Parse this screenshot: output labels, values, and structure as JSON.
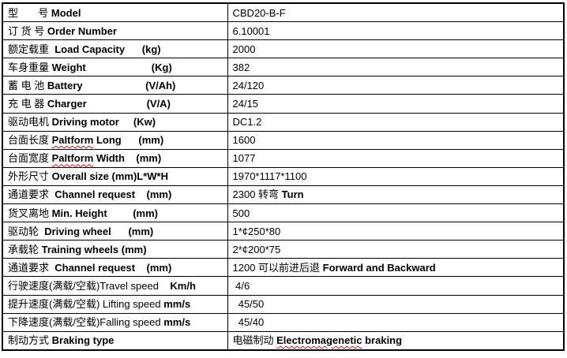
{
  "document": {
    "background": "#ffffff",
    "border_color": "#000000",
    "misspell_underline_color": "#ff0000",
    "text_color": "#000000"
  },
  "table": {
    "columns": [
      "label",
      "value"
    ],
    "rows": [
      {
        "label": [
          {
            "t": "型       号 "
          },
          {
            "t": "Model",
            "b": true
          }
        ],
        "value": [
          {
            "t": "CBD20-B-F"
          }
        ]
      },
      {
        "label": [
          {
            "t": "订 货 号 "
          },
          {
            "t": "Order Number",
            "b": true
          }
        ],
        "value": [
          {
            "t": "6.10001"
          }
        ]
      },
      {
        "label": [
          {
            "t": "额定载重  "
          },
          {
            "t": "Load Capacity",
            "b": true
          },
          {
            "t": "      "
          },
          {
            "t": "(kg)",
            "b": true
          }
        ],
        "value": [
          {
            "t": "2000"
          }
        ]
      },
      {
        "label": [
          {
            "t": "车身重量 "
          },
          {
            "t": "Weight",
            "b": true
          },
          {
            "t": "                       "
          },
          {
            "t": "(Kg)",
            "b": true
          }
        ],
        "value": [
          {
            "t": "382"
          }
        ]
      },
      {
        "label": [
          {
            "t": "蓄 电 池 "
          },
          {
            "t": "Battery",
            "b": true
          },
          {
            "t": "                      "
          },
          {
            "t": "(V/Ah)",
            "b": true
          }
        ],
        "value": [
          {
            "t": "24/120"
          }
        ]
      },
      {
        "label": [
          {
            "t": "充 电 器 "
          },
          {
            "t": "Charger",
            "b": true
          },
          {
            "t": "                     "
          },
          {
            "t": "(V/A)",
            "b": true
          }
        ],
        "value": [
          {
            "t": "24/15"
          }
        ]
      },
      {
        "label": [
          {
            "t": "驱动电机 "
          },
          {
            "t": "Driving motor",
            "b": true
          },
          {
            "t": "     "
          },
          {
            "t": "(Kw)",
            "b": true
          }
        ],
        "value": [
          {
            "t": "DC1.2"
          }
        ]
      },
      {
        "label": [
          {
            "t": "台面长度 "
          },
          {
            "t": "Paltform",
            "b": true,
            "m": true
          },
          {
            "t": " Long",
            "b": true
          },
          {
            "t": "      "
          },
          {
            "t": "(mm)",
            "b": true
          }
        ],
        "value": [
          {
            "t": "1600"
          }
        ]
      },
      {
        "label": [
          {
            "t": "台面宽度 "
          },
          {
            "t": "Paltform",
            "b": true,
            "m": true
          },
          {
            "t": " Width",
            "b": true
          },
          {
            "t": "    "
          },
          {
            "t": "(mm)",
            "b": true
          }
        ],
        "value": [
          {
            "t": "1077"
          }
        ]
      },
      {
        "label": [
          {
            "t": "外形尺寸 "
          },
          {
            "t": "Overall size (mm)L*W*H",
            "b": true
          }
        ],
        "value": [
          {
            "t": "1970*1117*1100"
          }
        ]
      },
      {
        "label": [
          {
            "t": "通道要求  "
          },
          {
            "t": "Channel request",
            "b": true
          },
          {
            "t": "    "
          },
          {
            "t": "(mm)",
            "b": true
          }
        ],
        "value": [
          {
            "t": "2300 转弯 "
          },
          {
            "t": "Turn",
            "b": true
          }
        ]
      },
      {
        "label": [
          {
            "t": "货叉离地 "
          },
          {
            "t": "Min. Height",
            "b": true
          },
          {
            "t": "         "
          },
          {
            "t": "(mm)",
            "b": true
          }
        ],
        "value": [
          {
            "t": "500"
          }
        ]
      },
      {
        "label": [
          {
            "t": "驱动轮  "
          },
          {
            "t": "Driving wheel",
            "b": true
          },
          {
            "t": "      "
          },
          {
            "t": "(mm)",
            "b": true
          }
        ],
        "value": [
          {
            "t": "1*¢250*80"
          }
        ]
      },
      {
        "label": [
          {
            "t": "承载轮 "
          },
          {
            "t": "Training wheels (mm)",
            "b": true
          }
        ],
        "value": [
          {
            "t": "2*¢200*75"
          }
        ]
      },
      {
        "label": [
          {
            "t": "通道要求  "
          },
          {
            "t": "Channel request",
            "b": true
          },
          {
            "t": "    "
          },
          {
            "t": "(mm)",
            "b": true
          }
        ],
        "value": [
          {
            "t": "1200 可以前进后退 "
          },
          {
            "t": "Forward and Backward",
            "b": true
          }
        ]
      },
      {
        "label": [
          {
            "t": "行驶速度(满载/空载)Travel speed"
          },
          {
            "t": "    "
          },
          {
            "t": "Km/h",
            "b": true
          }
        ],
        "value": [
          {
            "t": " 4/6"
          }
        ]
      },
      {
        "label": [
          {
            "t": "提升速度(满载/空载) Lifting speed "
          },
          {
            "t": "mm/s",
            "b": true
          }
        ],
        "value": [
          {
            "t": "  45/50"
          }
        ]
      },
      {
        "label": [
          {
            "t": "下降速度(满载/空载)Falling speed "
          },
          {
            "t": "mm/s",
            "b": true
          }
        ],
        "value": [
          {
            "t": "  45/40"
          }
        ]
      },
      {
        "label": [
          {
            "t": "制动方式 "
          },
          {
            "t": "Braking type",
            "b": true
          }
        ],
        "value": [
          {
            "t": "电磁制动 "
          },
          {
            "t": "Electromagenetic",
            "b": true,
            "m": true
          },
          {
            "t": " braking",
            "b": true
          }
        ]
      }
    ]
  }
}
